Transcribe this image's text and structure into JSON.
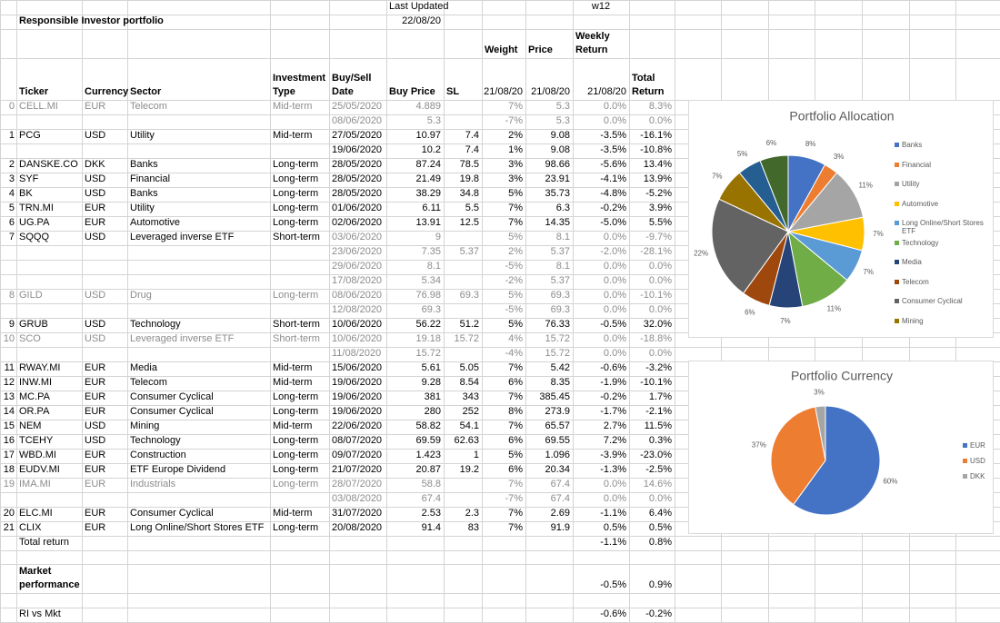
{
  "sheet": {
    "last_updated_label": "Last Updated",
    "last_updated": "22/08/20",
    "week": "w12",
    "title": "Responsible Investor portfolio",
    "headers": [
      "Ticker",
      "Currency",
      "Sector",
      "Investment Type",
      "Buy/Sell Date",
      "Buy Price",
      "SL",
      "Weight",
      "Price",
      "Weekly Return",
      "Total Return"
    ],
    "as_of": "21/08/20",
    "rows": [
      [
        "0",
        "CELL.MI",
        "EUR",
        "Telecom",
        "Mid-term",
        "25/05/2020",
        "4.889",
        null,
        "7%",
        "5.3",
        "0.0%",
        "8.3%"
      ],
      [
        null,
        null,
        null,
        null,
        null,
        "08/06/2020",
        "5.3",
        null,
        "-7%",
        "5.3",
        "0.0%",
        "0.0%"
      ],
      [
        "1",
        "PCG",
        "USD",
        "Utility",
        "Mid-term",
        "27/05/2020",
        "10.97",
        "7.4",
        "2%",
        "9.08",
        "-3.5%",
        "-16.1%"
      ],
      [
        null,
        null,
        null,
        null,
        null,
        "19/06/2020",
        "10.2",
        "7.4",
        "1%",
        "9.08",
        "-3.5%",
        "-10.8%"
      ],
      [
        "2",
        "DANSKE.CO",
        "DKK",
        "Banks",
        "Long-term",
        "28/05/2020",
        "87.24",
        "78.5",
        "3%",
        "98.66",
        "-5.6%",
        "13.4%"
      ],
      [
        "3",
        "SYF",
        "USD",
        "Financial",
        "Long-term",
        "28/05/2020",
        "21.49",
        "19.8",
        "3%",
        "23.91",
        "-4.1%",
        "13.9%"
      ],
      [
        "4",
        "BK",
        "USD",
        "Banks",
        "Long-term",
        "28/05/2020",
        "38.29",
        "34.8",
        "5%",
        "35.73",
        "-4.8%",
        "-5.2%"
      ],
      [
        "5",
        "TRN.MI",
        "EUR",
        "Utility",
        "Long-term",
        "01/06/2020",
        "6.11",
        "5.5",
        "7%",
        "6.3",
        "-0.2%",
        "3.9%"
      ],
      [
        "6",
        "UG.PA",
        "EUR",
        "Automotive",
        "Long-term",
        "02/06/2020",
        "13.91",
        "12.5",
        "7%",
        "14.35",
        "-5.0%",
        "5.5%"
      ],
      [
        "7",
        "SQQQ",
        "USD",
        "Leveraged inverse ETF",
        "Short-term",
        "03/06/2020",
        "9",
        null,
        "5%",
        "8.1",
        "0.0%",
        "-9.7%"
      ],
      [
        null,
        null,
        null,
        null,
        null,
        "23/06/2020",
        "7.35",
        "5.37",
        "2%",
        "5.37",
        "-2.0%",
        "-28.1%"
      ],
      [
        null,
        null,
        null,
        null,
        null,
        "29/06/2020",
        "8.1",
        null,
        "-5%",
        "8.1",
        "0.0%",
        "0.0%"
      ],
      [
        null,
        null,
        null,
        null,
        null,
        "17/08/2020",
        "5.34",
        null,
        "-2%",
        "5.37",
        "0.0%",
        "0.0%"
      ],
      [
        "8",
        "GILD",
        "USD",
        "Drug",
        "Long-term",
        "08/06/2020",
        "76.98",
        "69.3",
        "5%",
        "69.3",
        "0.0%",
        "-10.1%"
      ],
      [
        null,
        null,
        null,
        null,
        null,
        "12/08/2020",
        "69.3",
        null,
        "-5%",
        "69.3",
        "0.0%",
        "0.0%"
      ],
      [
        "9",
        "GRUB",
        "USD",
        "Technology",
        "Short-term",
        "10/06/2020",
        "56.22",
        "51.2",
        "5%",
        "76.33",
        "-0.5%",
        "32.0%"
      ],
      [
        "10",
        "SCO",
        "USD",
        "Leveraged inverse ETF",
        "Short-term",
        "10/06/2020",
        "19.18",
        "15.72",
        "4%",
        "15.72",
        "0.0%",
        "-18.8%"
      ],
      [
        null,
        null,
        null,
        null,
        null,
        "11/08/2020",
        "15.72",
        null,
        "-4%",
        "15.72",
        "0.0%",
        "0.0%"
      ],
      [
        "11",
        "RWAY.MI",
        "EUR",
        "Media",
        "Mid-term",
        "15/06/2020",
        "5.61",
        "5.05",
        "7%",
        "5.42",
        "-0.6%",
        "-3.2%"
      ],
      [
        "12",
        "INW.MI",
        "EUR",
        "Telecom",
        "Mid-term",
        "19/06/2020",
        "9.28",
        "8.54",
        "6%",
        "8.35",
        "-1.9%",
        "-10.1%"
      ],
      [
        "13",
        "MC.PA",
        "EUR",
        "Consumer Cyclical",
        "Long-term",
        "19/06/2020",
        "381",
        "343",
        "7%",
        "385.45",
        "-0.2%",
        "1.7%"
      ],
      [
        "14",
        "OR.PA",
        "EUR",
        "Consumer Cyclical",
        "Long-term",
        "19/06/2020",
        "280",
        "252",
        "8%",
        "273.9",
        "-1.7%",
        "-2.1%"
      ],
      [
        "15",
        "NEM",
        "USD",
        "Mining",
        "Mid-term",
        "22/06/2020",
        "58.82",
        "54.1",
        "7%",
        "65.57",
        "2.7%",
        "11.5%"
      ],
      [
        "16",
        "TCEHY",
        "USD",
        "Technology",
        "Long-term",
        "08/07/2020",
        "69.59",
        "62.63",
        "6%",
        "69.55",
        "7.2%",
        "0.3%"
      ],
      [
        "17",
        "WBD.MI",
        "EUR",
        "Construction",
        "Long-term",
        "09/07/2020",
        "1.423",
        "1",
        "5%",
        "1.096",
        "-3.9%",
        "-23.0%"
      ],
      [
        "18",
        "EUDV.MI",
        "EUR",
        "ETF Europe Dividend",
        "Long-term",
        "21/07/2020",
        "20.87",
        "19.2",
        "6%",
        "20.34",
        "-1.3%",
        "-2.5%"
      ],
      [
        "19",
        "IMA.MI",
        "EUR",
        "Industrials",
        "Long-term",
        "28/07/2020",
        "58.8",
        null,
        "7%",
        "67.4",
        "0.0%",
        "14.6%"
      ],
      [
        null,
        null,
        null,
        null,
        null,
        "03/08/2020",
        "67.4",
        null,
        "-7%",
        "67.4",
        "0.0%",
        "0.0%"
      ],
      [
        "20",
        "ELC.MI",
        "EUR",
        "Consumer Cyclical",
        "Mid-term",
        "31/07/2020",
        "2.53",
        "2.3",
        "7%",
        "2.69",
        "-1.1%",
        "6.4%"
      ],
      [
        "21",
        "CLIX",
        "EUR",
        "Long Online/Short Stores ETF",
        "Long-term",
        "20/08/2020",
        "91.4",
        "83",
        "7%",
        "91.9",
        "0.5%",
        "0.5%"
      ]
    ],
    "summary": [
      {
        "label": "Total return",
        "weekly": "-1.1%",
        "total": "0.8%"
      },
      {
        "label": "Market performance",
        "weekly": "-0.5%",
        "total": "0.9%"
      },
      {
        "label": "RI vs Mkt",
        "weekly": "-0.6%",
        "total": "-0.2%"
      }
    ]
  },
  "chart_data": [
    {
      "type": "pie",
      "title": "Portfolio Allocation",
      "categories": [
        "Banks",
        "Financial",
        "Utility",
        "Automotive",
        "Long Online/Short Stores ETF",
        "Technology",
        "Media",
        "Telecom",
        "Consumer Cyclical",
        "Mining",
        null,
        null
      ],
      "values": [
        8,
        3,
        11,
        7,
        7,
        11,
        7,
        6,
        22,
        7,
        5,
        6
      ],
      "value_labels": [
        "8%",
        "3%",
        "11%",
        "7%",
        "7%",
        "11%",
        "7%",
        "6%",
        "22%",
        "7%",
        "5%",
        "6%"
      ],
      "colors": [
        "#4472c4",
        "#ed7d31",
        "#a5a5a5",
        "#ffc000",
        "#5b9bd5",
        "#70ad47",
        "#264478",
        "#9e480e",
        "#636363",
        "#997300",
        "#255e91",
        "#43682b"
      ],
      "legend": "right"
    },
    {
      "type": "pie",
      "title": "Portfolio Currency",
      "categories": [
        "EUR",
        "USD",
        "DKK"
      ],
      "values": [
        60,
        37,
        3
      ],
      "value_labels": [
        "60%",
        "37%",
        "3%"
      ],
      "colors": [
        "#4472c4",
        "#ed7d31",
        "#a5a5a5"
      ],
      "legend": "right"
    }
  ]
}
